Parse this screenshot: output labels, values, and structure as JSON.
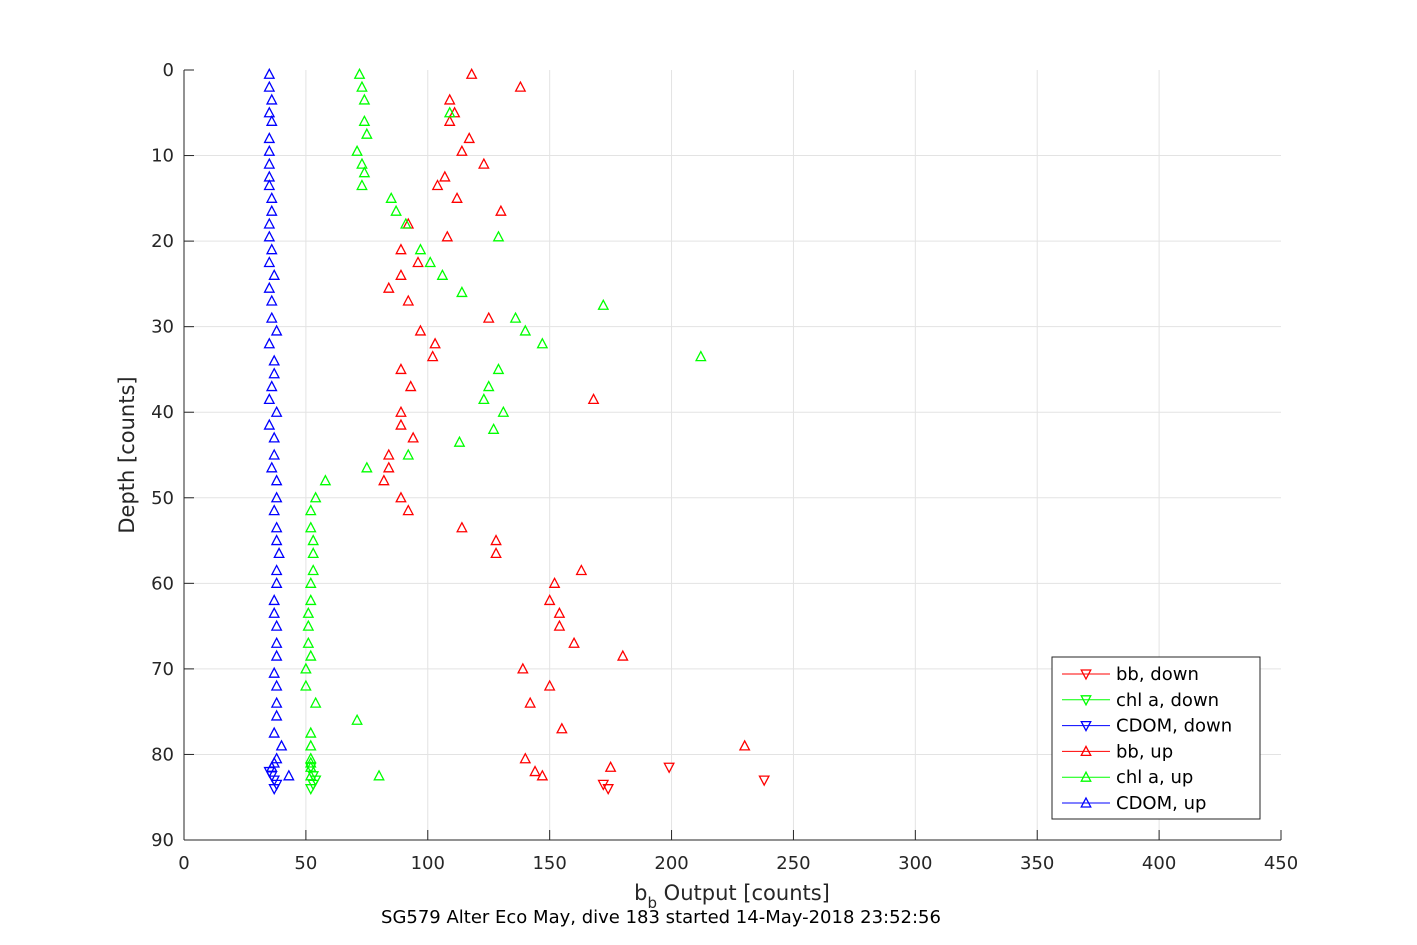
{
  "chart_data": {
    "type": "scatter",
    "title": "SG579 Alter Eco May, dive 183 started 14-May-2018 23:52:56",
    "xlabel_main": "b",
    "xlabel_sub": "b",
    "xlabel_rest": " Output [counts]",
    "ylabel": "Depth [counts]",
    "xlim": [
      0,
      450
    ],
    "ylim": [
      0,
      90
    ],
    "y_reversed": true,
    "x_ticks": [
      0,
      50,
      100,
      150,
      200,
      250,
      300,
      350,
      400,
      450
    ],
    "y_ticks": [
      0,
      10,
      20,
      30,
      40,
      50,
      60,
      70,
      80,
      90
    ],
    "grid": true,
    "legend_placement": "bottom-right",
    "series": [
      {
        "name": "bb, down",
        "color": "#ff0000",
        "marker": "triangle-down",
        "x": [
          199,
          238,
          172,
          174
        ],
        "y": [
          81.5,
          83.0,
          83.5,
          84.0
        ]
      },
      {
        "name": "chl a, down",
        "color": "#00ff00",
        "marker": "triangle-down",
        "x": [
          52,
          53,
          54,
          53,
          52
        ],
        "y": [
          81.5,
          82.5,
          83.0,
          83.5,
          84.0
        ]
      },
      {
        "name": "CDOM, down",
        "color": "#0000ff",
        "marker": "triangle-down",
        "x": [
          35,
          36,
          37,
          38,
          37
        ],
        "y": [
          82.0,
          82.5,
          83.0,
          83.5,
          84.0
        ]
      },
      {
        "name": "bb, up",
        "color": "#ff0000",
        "marker": "triangle-up",
        "x": [
          118,
          138,
          109,
          111,
          109,
          117,
          114,
          123,
          107,
          104,
          112,
          130,
          92,
          108,
          89,
          96,
          89,
          84,
          92,
          125,
          97,
          103,
          102,
          89,
          93,
          168,
          89,
          89,
          94,
          84,
          84,
          82,
          89,
          92,
          114,
          128,
          128,
          163,
          152,
          150,
          154,
          154,
          160,
          180,
          139,
          150,
          142,
          155,
          230,
          140,
          144,
          147,
          175
        ],
        "y": [
          0.5,
          2.0,
          3.5,
          5.0,
          6.0,
          8.0,
          9.5,
          11.0,
          12.5,
          13.5,
          15.0,
          16.5,
          18.0,
          19.5,
          21.0,
          22.5,
          24.0,
          25.5,
          27.0,
          29.0,
          30.5,
          32.0,
          33.5,
          35.0,
          37.0,
          38.5,
          40.0,
          41.5,
          43.0,
          45.0,
          46.5,
          48.0,
          50.0,
          51.5,
          53.5,
          55.0,
          56.5,
          58.5,
          60.0,
          62.0,
          63.5,
          65.0,
          67.0,
          68.5,
          70.0,
          72.0,
          74.0,
          77.0,
          79.0,
          80.5,
          82.0,
          82.5,
          81.5
        ]
      },
      {
        "name": "chl a, up",
        "color": "#00ff00",
        "marker": "triangle-up",
        "x": [
          72,
          73,
          74,
          109,
          74,
          75,
          71,
          73,
          74,
          73,
          85,
          87,
          91,
          129,
          97,
          101,
          106,
          114,
          172,
          136,
          140,
          147,
          212,
          129,
          125,
          123,
          131,
          127,
          113,
          92,
          75,
          58,
          54,
          52,
          52,
          53,
          53,
          53,
          52,
          52,
          51,
          51,
          51,
          52,
          50,
          50,
          54,
          71,
          52,
          52,
          52,
          52,
          52,
          52,
          80
        ],
        "y": [
          0.5,
          2.0,
          3.5,
          5.0,
          6.0,
          7.5,
          9.5,
          11.0,
          12.0,
          13.5,
          15.0,
          16.5,
          18.0,
          19.5,
          21.0,
          22.5,
          24.0,
          26.0,
          27.5,
          29.0,
          30.5,
          32.0,
          33.5,
          35.0,
          37.0,
          38.5,
          40.0,
          42.0,
          43.5,
          45.0,
          46.5,
          48.0,
          50.0,
          51.5,
          53.5,
          55.0,
          56.5,
          58.5,
          60.0,
          62.0,
          63.5,
          65.0,
          67.0,
          68.5,
          70.0,
          72.0,
          74.0,
          76.0,
          77.5,
          79.0,
          80.5,
          81.0,
          81.5,
          82.5,
          82.5
        ]
      },
      {
        "name": "CDOM, up",
        "color": "#0000ff",
        "marker": "triangle-up",
        "x": [
          35,
          35,
          36,
          35,
          36,
          35,
          35,
          35,
          35,
          35,
          36,
          36,
          35,
          35,
          36,
          35,
          37,
          35,
          36,
          36,
          38,
          35,
          37,
          37,
          36,
          35,
          38,
          35,
          37,
          37,
          36,
          38,
          38,
          37,
          38,
          38,
          39,
          38,
          38,
          37,
          37,
          38,
          38,
          38,
          37,
          38,
          38,
          38,
          37,
          40,
          38,
          43,
          37,
          36
        ],
        "y": [
          0.5,
          2.0,
          3.5,
          5.0,
          6.0,
          8.0,
          9.5,
          11.0,
          12.5,
          13.5,
          15.0,
          16.5,
          18.0,
          19.5,
          21.0,
          22.5,
          24.0,
          25.5,
          27.0,
          29.0,
          30.5,
          32.0,
          34.0,
          35.5,
          37.0,
          38.5,
          40.0,
          41.5,
          43.0,
          45.0,
          46.5,
          48.0,
          50.0,
          51.5,
          53.5,
          55.0,
          56.5,
          58.5,
          60.0,
          62.0,
          63.5,
          65.0,
          67.0,
          68.5,
          70.5,
          72.0,
          74.0,
          75.5,
          77.5,
          79.0,
          80.5,
          82.5,
          81.0,
          81.5
        ]
      }
    ]
  }
}
